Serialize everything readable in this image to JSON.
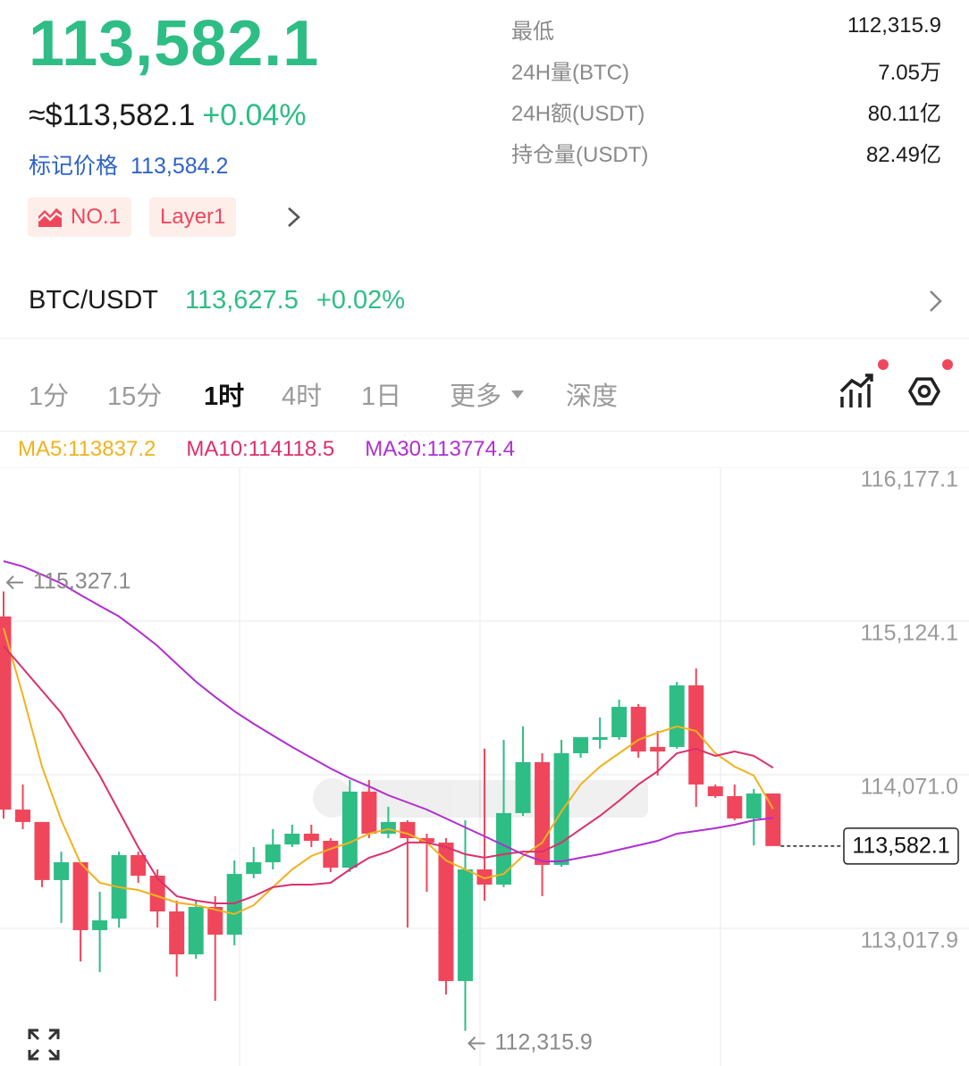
{
  "header": {
    "price": "113,582.1",
    "usd_price": "≈$113,582.1",
    "change": "+0.04%",
    "mark_price_label": "标记价格",
    "mark_price": "113,584.2",
    "tags": [
      "NO.1",
      "Layer1"
    ]
  },
  "stats": [
    {
      "label": "最低",
      "value": "112,315.9"
    },
    {
      "label": "24H量(BTC)",
      "value": "7.05万"
    },
    {
      "label": "24H额(USDT)",
      "value": "80.11亿"
    },
    {
      "label": "持仓量(USDT)",
      "value": "82.49亿"
    }
  ],
  "pair": {
    "name": "BTC/USDT",
    "price": "113,627.5",
    "change": "+0.02%"
  },
  "tabs": [
    "1分",
    "15分",
    "1时",
    "4时",
    "1日",
    "更多",
    "深度"
  ],
  "active_tab": 2,
  "chart_data": {
    "type": "candlestick",
    "up_color": "#2ebd85",
    "down_color": "#f0465c",
    "ylim": [
      112075,
      116177.1
    ],
    "yticks": [
      {
        "value": 116177.1,
        "label": "116,177.1"
      },
      {
        "value": 115124.1,
        "label": "115,124.1"
      },
      {
        "value": 114071.0,
        "label": "114,071.0"
      },
      {
        "value": 113017.9,
        "label": "113,017.9"
      }
    ],
    "grid": true,
    "candles": {
      "open": [
        115155,
        113832,
        113747,
        113349,
        113471,
        113006,
        113085,
        113520,
        113379,
        113134,
        112840,
        113165,
        112975,
        113391,
        113471,
        113593,
        113667,
        113618,
        113434,
        113955,
        113667,
        113747,
        113636,
        113606,
        112657,
        113422,
        113318,
        113808,
        114157,
        113453,
        114218,
        114310,
        114328,
        114536,
        114261,
        114261,
        114683,
        113991,
        113924,
        113771,
        113942
      ],
      "high": [
        115327.1,
        114004,
        113747,
        113544,
        113471,
        113269,
        113544,
        113544,
        113422,
        113208,
        113208,
        113238,
        113483,
        113575,
        113698,
        113728,
        113728,
        113636,
        114034,
        114034,
        113851,
        113759,
        113667,
        113636,
        113759,
        114249,
        114310,
        114402,
        114218,
        114310,
        114328,
        114463,
        114585,
        114555,
        114371,
        114707,
        114799,
        114004,
        114004,
        113973,
        113942
      ],
      "low": [
        113770,
        113698,
        113300,
        113055,
        112791,
        112718,
        113024,
        113330,
        113024,
        112687,
        112810,
        112522,
        112902,
        113361,
        113422,
        113575,
        113575,
        113404,
        113404,
        113636,
        113636,
        113024,
        113269,
        112565,
        112315.9,
        113208,
        113300,
        113789,
        113238,
        113440,
        114187,
        114249,
        114310,
        114187,
        114065,
        114249,
        113851,
        113912,
        113759,
        113587,
        113582.1
      ],
      "close": [
        113832,
        113747,
        113349,
        113471,
        113006,
        113073,
        113520,
        113379,
        113134,
        112840,
        113165,
        112975,
        113391,
        113471,
        113593,
        113667,
        113618,
        113434,
        113955,
        113667,
        113747,
        113636,
        113606,
        112657,
        113422,
        113318,
        113808,
        114157,
        113453,
        114218,
        114328,
        114328,
        114536,
        114230,
        114230,
        114683,
        114004,
        113924,
        113771,
        113942,
        113582.1
      ]
    },
    "series": [
      {
        "name": "MA5",
        "legend_label": "MA5:113837.2",
        "color": "#f2b21d",
        "values": [
          115075,
          114616,
          114126,
          113759,
          113465,
          113330,
          113300,
          113281,
          113238,
          113195,
          113177,
          113147,
          113116,
          113177,
          113300,
          113422,
          113514,
          113563,
          113606,
          113667,
          113698,
          113667,
          113606,
          113483,
          113422,
          113361,
          113391,
          113514,
          113606,
          113820,
          114004,
          114126,
          114218,
          114310,
          114359,
          114402,
          114371,
          114218,
          114126,
          114065,
          113837.2
        ]
      },
      {
        "name": "MA10",
        "legend_label": "MA10:114118.5",
        "color": "#dc2f6e",
        "values": [
          114953,
          114800,
          114647,
          114493,
          114279,
          114065,
          113820,
          113575,
          113361,
          113238,
          113208,
          113189,
          113189,
          113238,
          113300,
          113318,
          113318,
          113330,
          113422,
          113502,
          113544,
          113606,
          113606,
          113575,
          113526,
          113502,
          113526,
          113544,
          113544,
          113606,
          113698,
          113789,
          113893,
          114004,
          114095,
          114218,
          114249,
          114200,
          114230,
          114200,
          114118.5
        ]
      },
      {
        "name": "MA30",
        "legend_label": "MA30:113774.4",
        "color": "#b02ed2",
        "values": [
          115534,
          115498,
          115442,
          115381,
          115302,
          115228,
          115155,
          115057,
          114953,
          114830,
          114708,
          114604,
          114506,
          114420,
          114340,
          114261,
          114187,
          114114,
          114047,
          113991,
          113930,
          113881,
          113832,
          113771,
          113710,
          113649,
          113587,
          113526,
          113477,
          113477,
          113502,
          113526,
          113557,
          113587,
          113618,
          113667,
          113685,
          113704,
          113728,
          113759,
          113774.4
        ]
      }
    ],
    "last_price": {
      "value": 113582.1,
      "label": "113,582.1"
    },
    "high_marker": {
      "value": 115327.1,
      "label": "115,327.1"
    },
    "low_marker": {
      "value": 112315.9,
      "label": "112,315.9"
    }
  }
}
